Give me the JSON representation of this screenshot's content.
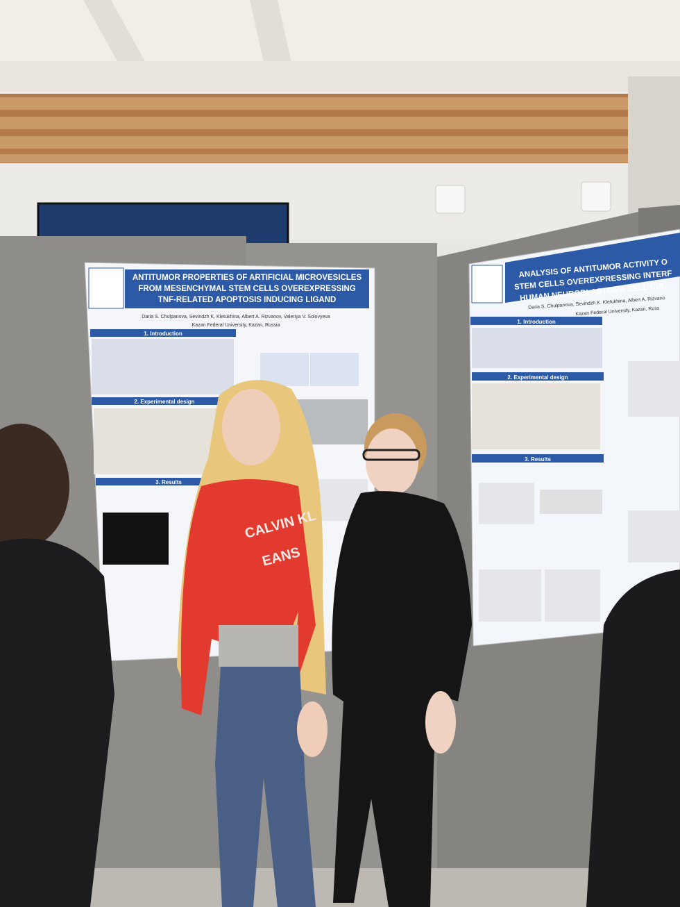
{
  "left_poster": {
    "title_lines": [
      "ANTITUMOR PROPERTIES OF ARTIFICIAL MICROVESICLES",
      "FROM MESENCHYMAL STEM CELLS OVEREXPRESSING",
      "TNF-RELATED APOPTOSIS INDUCING LIGAND"
    ],
    "authors": "Daria S. Chulpanova, Sevindzh K. Kletukhina, Albert A. Rizvanov, Valeriya V. Solovyeva",
    "affiliation": "Kazan Federal University, Kazan, Russia",
    "sections": [
      "1. Introduction",
      "2. Experimental design",
      "3. Results"
    ]
  },
  "right_poster": {
    "title_lines": [
      "ANALYSIS OF ANTITUMOR ACTIVITY O",
      "STEM CELLS OVEREXPRESSING INTERF",
      "HUMAN NEUROBLASTOMA CELL CUL"
    ],
    "authors": "Daria S. Chulpanova, Sevindzh K. Kletukhina, Albert A. Rizvano",
    "affiliation": "Kazan Federal University, Kazan, Russ",
    "sections": [
      "1. Introduction",
      "2. Experimental design",
      "3. Results"
    ]
  },
  "shirt_text": [
    "CALVIN KL",
    "EANS"
  ]
}
